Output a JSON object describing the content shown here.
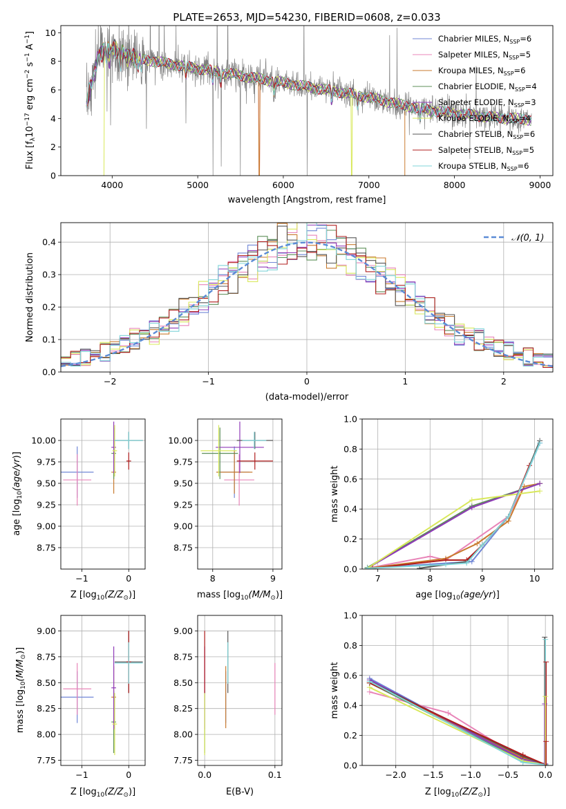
{
  "figure_title": "PLATE=2653, MJD=54230, FIBERID=0608, z=0.033",
  "colors": {
    "chabrier_miles": "#6f86d6",
    "salpeter_miles": "#e884b8",
    "kroupa_miles": "#c87a2e",
    "chabrier_elodie": "#5c8f58",
    "salpeter_elodie": "#8f3ab8",
    "kroupa_elodie": "#d8e85a",
    "chabrier_stelib": "#555555",
    "salpeter_stelib": "#b01c1c",
    "kroupa_stelib": "#7fd4d8",
    "gaussian": "#5b8bd6",
    "data": "#808080"
  },
  "chart_data": [
    {
      "type": "line",
      "panel": "spectrum",
      "title": "PLATE=2653, MJD=54230, FIBERID=0608, z=0.033",
      "xlabel": "wavelength [Angstrom, rest frame]",
      "ylabel": "Flux [f",
      "xlim": [
        3400,
        9150
      ],
      "ylim": [
        0,
        10.5
      ],
      "xticks": [
        4000,
        5000,
        6000,
        7000,
        8000,
        9000
      ],
      "yticks": [
        0,
        2,
        4,
        6,
        8,
        10
      ],
      "legend_position": "top-right",
      "legend": [
        {
          "main": "Chabrier MILES, N",
          "sub": "SSP",
          "tail": "=6",
          "color_key": "chabrier_miles"
        },
        {
          "main": "Salpeter MILES, N",
          "sub": "SSP",
          "tail": "=5",
          "color_key": "salpeter_miles"
        },
        {
          "main": "Kroupa MILES, N",
          "sub": "SSP",
          "tail": "=6",
          "color_key": "kroupa_miles"
        },
        {
          "main": "Chabrier ELODIE, N",
          "sub": "SSP",
          "tail": "=4",
          "color_key": "chabrier_elodie"
        },
        {
          "main": "Salpeter ELODIE, N",
          "sub": "SSP",
          "tail": "=3",
          "color_key": "salpeter_elodie"
        },
        {
          "main": "Kroupa ELODIE, N",
          "sub": "SSP",
          "tail": "=4",
          "color_key": "kroupa_elodie"
        },
        {
          "main": "Chabrier STELIB, N",
          "sub": "SSP",
          "tail": "=6",
          "color_key": "chabrier_stelib"
        },
        {
          "main": "Salpeter STELIB, N",
          "sub": "SSP",
          "tail": "=5",
          "color_key": "salpeter_stelib"
        },
        {
          "main": "Kroupa STELIB, N",
          "sub": "SSP",
          "tail": "=6",
          "color_key": "kroupa_stelib"
        }
      ],
      "continuum_model": {
        "x": [
          3700,
          3850,
          4000,
          4200,
          4500,
          4800,
          5100,
          5400,
          5700,
          6000,
          6300,
          6600,
          6900,
          7200,
          7500,
          7800,
          8100,
          8400,
          8700,
          8900
        ],
        "y": [
          5.0,
          8.6,
          8.9,
          8.3,
          8.0,
          7.7,
          7.4,
          7.1,
          6.8,
          6.5,
          6.2,
          5.9,
          5.6,
          5.2,
          4.8,
          4.5,
          4.3,
          4.1,
          4.0,
          3.9
        ]
      },
      "model_cutoffs": {
        "kroupa_elodie_start": 3900,
        "kroupa_elodie_end": 6800,
        "kroupa_miles_end": 7420,
        "miles_gap": 5720
      }
    },
    {
      "type": "line",
      "panel": "residuals",
      "xlabel": "(data-model)/error",
      "ylabel": "Normed distribution",
      "xlim": [
        -2.5,
        2.5
      ],
      "ylim": [
        0,
        0.46
      ],
      "xticks": [
        -2,
        -1,
        0,
        1,
        2
      ],
      "yticks": [
        0.0,
        0.1,
        0.2,
        0.3,
        0.4
      ],
      "legend_label": "𝒩(0, 1)",
      "legend_position": "top-right",
      "grid": true,
      "bin_width": 0.1
    },
    {
      "type": "scatter",
      "panel": "age-vs-metallicity",
      "xlabel": "Z [log",
      "ylabel": "age  [log",
      "xlim": [
        -1.45,
        0.35
      ],
      "ylim": [
        8.5,
        10.25
      ],
      "xticks": [
        -1,
        0
      ],
      "yticks": [
        8.75,
        9.0,
        9.25,
        9.5,
        9.75,
        10.0
      ],
      "grid": true
    },
    {
      "type": "scatter",
      "panel": "age-vs-mass",
      "xlabel": "mass [log",
      "ylabel": "",
      "xlim": [
        7.75,
        9.15
      ],
      "ylim": [
        8.5,
        10.25
      ],
      "xticks": [
        8,
        9
      ],
      "yticks": [
        8.75,
        9.0,
        9.25,
        9.5,
        9.75,
        10.0
      ],
      "grid": true
    },
    {
      "type": "line",
      "panel": "mass-weight-vs-age",
      "xlabel": "age  [log",
      "ylabel": "mass weight",
      "xlim": [
        6.7,
        10.35
      ],
      "ylim": [
        0,
        1.0
      ],
      "xticks": [
        7,
        8,
        9,
        10
      ],
      "yticks": [
        0.0,
        0.2,
        0.4,
        0.6,
        0.8,
        1.0
      ],
      "grid": true,
      "series": [
        {
          "color_key": "chabrier_miles",
          "x": [
            6.8,
            8.8,
            9.5,
            10.1
          ],
          "y": [
            0.005,
            0.05,
            0.35,
            0.84
          ]
        },
        {
          "color_key": "salpeter_miles",
          "x": [
            6.8,
            8.0,
            8.3,
            9.5,
            9.8
          ],
          "y": [
            0.005,
            0.085,
            0.06,
            0.35,
            0.55
          ]
        },
        {
          "color_key": "kroupa_miles",
          "x": [
            6.8,
            8.3,
            8.9,
            9.5,
            9.8,
            10.1
          ],
          "y": [
            0.005,
            0.07,
            0.17,
            0.32,
            0.55,
            0.57
          ]
        },
        {
          "color_key": "chabrier_elodie",
          "x": [
            6.8,
            8.8,
            10.1
          ],
          "y": [
            0.01,
            0.42,
            0.57
          ]
        },
        {
          "color_key": "salpeter_elodie",
          "x": [
            6.8,
            8.8,
            10.1
          ],
          "y": [
            0.005,
            0.41,
            0.57
          ]
        },
        {
          "color_key": "kroupa_elodie",
          "x": [
            6.8,
            8.8,
            10.1
          ],
          "y": [
            0.005,
            0.46,
            0.52
          ]
        },
        {
          "color_key": "chabrier_stelib",
          "x": [
            7.8,
            8.3,
            8.7,
            9.0,
            9.5,
            10.1
          ],
          "y": [
            0.005,
            0.03,
            0.05,
            0.16,
            0.35,
            0.855
          ]
        },
        {
          "color_key": "salpeter_stelib",
          "x": [
            6.9,
            8.3,
            8.7,
            9.0,
            9.5,
            9.9
          ],
          "y": [
            0.005,
            0.06,
            0.06,
            0.16,
            0.35,
            0.69
          ]
        },
        {
          "color_key": "kroupa_stelib",
          "x": [
            6.8,
            8.3,
            8.7,
            9.0,
            9.5,
            10.1
          ],
          "y": [
            0.005,
            0.03,
            0.04,
            0.16,
            0.35,
            0.84
          ]
        }
      ]
    },
    {
      "type": "scatter",
      "panel": "mass-vs-metallicity",
      "xlabel": "Z [log",
      "ylabel": "mass [log",
      "xlim": [
        -1.45,
        0.35
      ],
      "ylim": [
        7.7,
        9.15
      ],
      "xticks": [
        -1,
        0
      ],
      "yticks": [
        7.75,
        8.0,
        8.25,
        8.5,
        8.75,
        9.0
      ],
      "grid": true
    },
    {
      "type": "scatter",
      "panel": "mass-vs-extinction",
      "xlabel": "E(B-V)",
      "ylabel": "",
      "xlim": [
        -0.01,
        0.11
      ],
      "ylim": [
        7.7,
        9.15
      ],
      "xticks": [
        0.0,
        0.1
      ],
      "yticks": [
        7.75,
        8.0,
        8.25,
        8.5,
        8.75,
        9.0
      ],
      "grid": true
    },
    {
      "type": "line",
      "panel": "mass-weight-vs-metallicity",
      "xlabel": "Z [log",
      "ylabel": "mass weight",
      "xlim": [
        -2.45,
        0.1
      ],
      "ylim": [
        0,
        1.0
      ],
      "xticks": [
        -2.0,
        -1.5,
        -1.0,
        -0.5,
        0.0
      ],
      "yticks": [
        0.0,
        0.2,
        0.4,
        0.6,
        0.8,
        1.0
      ],
      "grid": true,
      "series": [
        {
          "color_key": "chabrier_miles",
          "x": [
            -2.35,
            -0.3,
            0.0
          ],
          "y": [
            0.58,
            0.03,
            0.005
          ]
        },
        {
          "color_key": "salpeter_miles",
          "x": [
            -2.35,
            -1.3,
            -0.3,
            0.0
          ],
          "y": [
            0.49,
            0.35,
            0.04,
            0.005
          ]
        },
        {
          "color_key": "kroupa_miles",
          "x": [
            -2.35,
            -0.3,
            0.0
          ],
          "y": [
            0.55,
            0.05,
            0.005
          ]
        },
        {
          "color_key": "chabrier_elodie",
          "x": [
            -2.35,
            -0.3,
            0.0
          ],
          "y": [
            0.55,
            0.03,
            0.01
          ]
        },
        {
          "color_key": "salpeter_elodie",
          "x": [
            -2.35,
            -0.3,
            0.0
          ],
          "y": [
            0.57,
            0.04,
            0.01
          ]
        },
        {
          "color_key": "kroupa_elodie",
          "x": [
            -2.35,
            -0.3,
            0.0
          ],
          "y": [
            0.52,
            0.03,
            0.005
          ]
        },
        {
          "color_key": "chabrier_stelib",
          "x": [
            -2.35,
            -0.3,
            0.0
          ],
          "y": [
            0.56,
            0.06,
            0.005
          ]
        },
        {
          "color_key": "salpeter_stelib",
          "x": [
            -2.35,
            -0.3,
            0.0
          ],
          "y": [
            0.55,
            0.07,
            0.005
          ]
        },
        {
          "color_key": "kroupa_stelib",
          "x": [
            -2.35,
            -0.3,
            0.0
          ],
          "y": [
            0.56,
            0.02,
            0.005
          ]
        }
      ],
      "vertical_stems": [
        {
          "color_key": "chabrier_stelib",
          "top": 0.855
        },
        {
          "color_key": "kroupa_stelib",
          "top": 0.84
        },
        {
          "color_key": "salpeter_stelib",
          "top": 0.69
        },
        {
          "color_key": "salpeter_elodie",
          "top": 0.41
        },
        {
          "color_key": "kroupa_elodie",
          "top": 0.46
        },
        {
          "color_key": "salpeter_stelib",
          "top": 0.16
        }
      ]
    }
  ],
  "ssp_components": [
    {
      "color_key": "chabrier_miles",
      "z": -1.1,
      "age": 9.63,
      "mass": 8.36,
      "ebv": 0.03,
      "dz": 0.35,
      "dage": 0.3,
      "dm": 0.25
    },
    {
      "color_key": "salpeter_miles",
      "z": -1.1,
      "age": 9.54,
      "mass": 8.44,
      "ebv": 0.1,
      "dz": 0.3,
      "dage": 0.3,
      "dm": 0.25
    },
    {
      "color_key": "kroupa_miles",
      "z": -0.32,
      "age": 9.63,
      "mass": 8.36,
      "ebv": 0.03,
      "dz": 0.05,
      "dage": 0.25,
      "dm": 0.3
    },
    {
      "color_key": "chabrier_elodie",
      "z": -0.32,
      "age": 9.85,
      "mass": 8.12,
      "ebv": 0.0,
      "dz": 0.05,
      "dage": 0.3,
      "dm": 0.3
    },
    {
      "color_key": "salpeter_elodie",
      "z": -0.32,
      "age": 9.92,
      "mass": 8.45,
      "ebv": 0.0,
      "dz": 0.05,
      "dage": 0.3,
      "dm": 0.4
    },
    {
      "color_key": "kroupa_elodie",
      "z": -0.3,
      "age": 9.88,
      "mass": 8.1,
      "ebv": 0.0,
      "dz": 0.05,
      "dage": 0.3,
      "dm": 0.3
    },
    {
      "color_key": "chabrier_stelib",
      "z": 0.0,
      "age": 10.0,
      "mass": 8.7,
      "ebv": 0.033,
      "dz": 0.3,
      "dage": 0.1,
      "dm": 0.3
    },
    {
      "color_key": "salpeter_stelib",
      "z": 0.0,
      "age": 9.76,
      "mass": 8.7,
      "ebv": 0.0,
      "dz": 0.05,
      "dage": 0.1,
      "dm": 0.3
    },
    {
      "color_key": "kroupa_stelib",
      "z": 0.0,
      "age": 10.0,
      "mass": 8.69,
      "ebv": 0.033,
      "dz": 0.3,
      "dage": 0.1,
      "dm": 0.2
    }
  ]
}
